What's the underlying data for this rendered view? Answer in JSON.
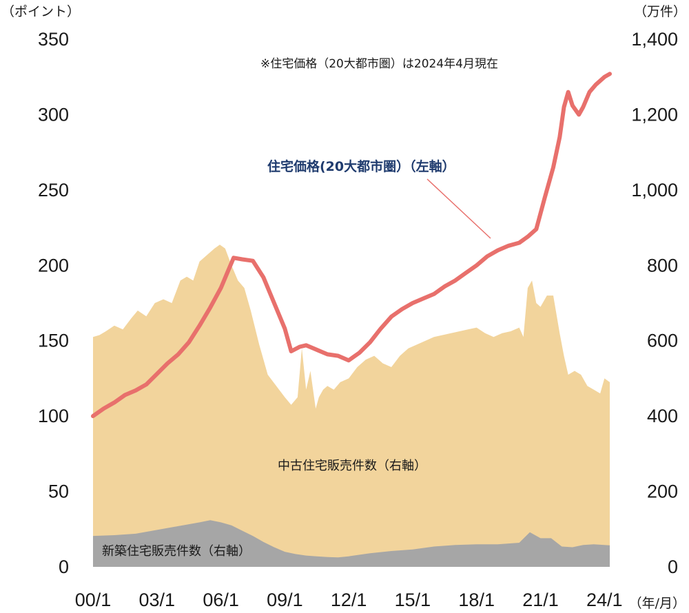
{
  "chart_data": {
    "type": "area",
    "note": "※住宅価格（20大都市圏）は2024年4月現在",
    "left_axis": {
      "unit_label": "（ポイント）",
      "range": [
        0,
        350
      ],
      "ticks": [
        "0",
        "50",
        "100",
        "150",
        "200",
        "250",
        "300",
        "350"
      ]
    },
    "right_axis": {
      "unit_label": "（万件）",
      "range": [
        0,
        1400
      ],
      "ticks": [
        "0",
        "200",
        "400",
        "600",
        "800",
        "1,000",
        "1,200",
        "1,400"
      ]
    },
    "x_axis": {
      "unit_label": "（年/月）",
      "ticks": [
        "00/1",
        "03/1",
        "06/1",
        "09/1",
        "12/1",
        "15/1",
        "18/1",
        "21/1",
        "24/1"
      ],
      "tick_years": [
        2000,
        2003,
        2006,
        2009,
        2012,
        2015,
        2018,
        2021,
        2024
      ],
      "range": [
        2000.0,
        2024.25
      ]
    },
    "grid": false,
    "colors": {
      "existing": "#f2d49c",
      "new": "#a6a6a6",
      "price": "#e8706c",
      "price_label": "#1f3b6e"
    },
    "series": [
      {
        "name": "住宅価格(20大都市圏）（左軸）",
        "axis": "left",
        "kind": "line",
        "x": [
          2000.0,
          2000.5,
          2001.0,
          2001.5,
          2002.0,
          2002.5,
          2003.0,
          2003.5,
          2004.0,
          2004.5,
          2005.0,
          2005.5,
          2006.0,
          2006.3,
          2006.6,
          2007.0,
          2007.5,
          2008.0,
          2008.5,
          2009.0,
          2009.3,
          2009.7,
          2010.0,
          2010.5,
          2011.0,
          2011.5,
          2012.0,
          2012.5,
          2013.0,
          2013.5,
          2014.0,
          2014.5,
          2015.0,
          2015.5,
          2016.0,
          2016.5,
          2017.0,
          2017.5,
          2018.0,
          2018.5,
          2019.0,
          2019.5,
          2020.0,
          2020.4,
          2020.8,
          2021.2,
          2021.6,
          2021.9,
          2022.1,
          2022.3,
          2022.5,
          2022.8,
          2023.0,
          2023.3,
          2023.6,
          2024.0,
          2024.25
        ],
        "values": [
          100,
          105,
          109,
          114,
          117,
          121,
          128,
          135,
          141,
          149,
          160,
          172,
          185,
          195,
          205,
          204,
          203,
          192,
          175,
          158,
          143,
          146,
          147,
          144,
          141,
          140,
          137,
          142,
          149,
          158,
          166,
          171,
          175,
          178,
          181,
          186,
          190,
          195,
          200,
          206,
          210,
          213,
          215,
          219,
          224,
          245,
          265,
          285,
          305,
          315,
          306,
          300,
          305,
          315,
          320,
          325,
          327
        ]
      },
      {
        "name": "中古住宅販売件数（右軸）",
        "axis": "right",
        "kind": "area",
        "x": [
          2000.0,
          2000.3,
          2000.6,
          2001.0,
          2001.4,
          2001.8,
          2002.1,
          2002.5,
          2002.9,
          2003.3,
          2003.7,
          2004.1,
          2004.4,
          2004.7,
          2005.0,
          2005.4,
          2005.7,
          2005.95,
          2006.2,
          2006.5,
          2006.8,
          2007.1,
          2007.4,
          2007.8,
          2008.2,
          2008.6,
          2009.0,
          2009.3,
          2009.6,
          2009.8,
          2010.0,
          2010.2,
          2010.45,
          2010.6,
          2010.8,
          2011.0,
          2011.3,
          2011.6,
          2012.0,
          2012.4,
          2012.8,
          2013.2,
          2013.6,
          2014.0,
          2014.4,
          2014.8,
          2015.2,
          2015.6,
          2016.0,
          2016.4,
          2016.8,
          2017.2,
          2017.6,
          2018.0,
          2018.4,
          2018.8,
          2019.2,
          2019.6,
          2020.0,
          2020.2,
          2020.4,
          2020.6,
          2020.8,
          2021.0,
          2021.3,
          2021.6,
          2021.9,
          2022.1,
          2022.3,
          2022.6,
          2022.9,
          2023.2,
          2023.5,
          2023.8,
          2024.0,
          2024.25
        ],
        "values": [
          610,
          615,
          625,
          640,
          630,
          660,
          680,
          665,
          700,
          710,
          700,
          760,
          770,
          760,
          810,
          830,
          845,
          855,
          845,
          800,
          760,
          740,
          680,
          590,
          510,
          480,
          450,
          430,
          450,
          580,
          470,
          520,
          420,
          450,
          470,
          480,
          470,
          490,
          500,
          530,
          550,
          560,
          540,
          530,
          560,
          580,
          590,
          600,
          610,
          615,
          620,
          625,
          630,
          635,
          620,
          610,
          620,
          625,
          635,
          610,
          740,
          760,
          700,
          690,
          720,
          720,
          620,
          560,
          510,
          520,
          510,
          480,
          470,
          460,
          500,
          490
        ]
      },
      {
        "name": "新築住宅販売件数（右軸）",
        "axis": "right",
        "kind": "area",
        "x": [
          2000.0,
          2001.0,
          2002.0,
          2003.0,
          2004.0,
          2005.0,
          2005.5,
          2006.0,
          2006.5,
          2007.0,
          2007.5,
          2008.0,
          2008.5,
          2009.0,
          2009.5,
          2010.0,
          2010.5,
          2011.0,
          2011.5,
          2012.0,
          2013.0,
          2014.0,
          2015.0,
          2016.0,
          2017.0,
          2018.0,
          2019.0,
          2020.0,
          2020.5,
          2021.0,
          2021.5,
          2022.0,
          2022.5,
          2023.0,
          2023.5,
          2024.0,
          2024.25
        ],
        "values": [
          82,
          84,
          88,
          98,
          108,
          118,
          124,
          118,
          110,
          96,
          82,
          66,
          52,
          40,
          34,
          30,
          28,
          26,
          25,
          28,
          36,
          42,
          46,
          54,
          58,
          60,
          60,
          64,
          92,
          76,
          76,
          54,
          52,
          58,
          60,
          58,
          57
        ]
      }
    ]
  }
}
